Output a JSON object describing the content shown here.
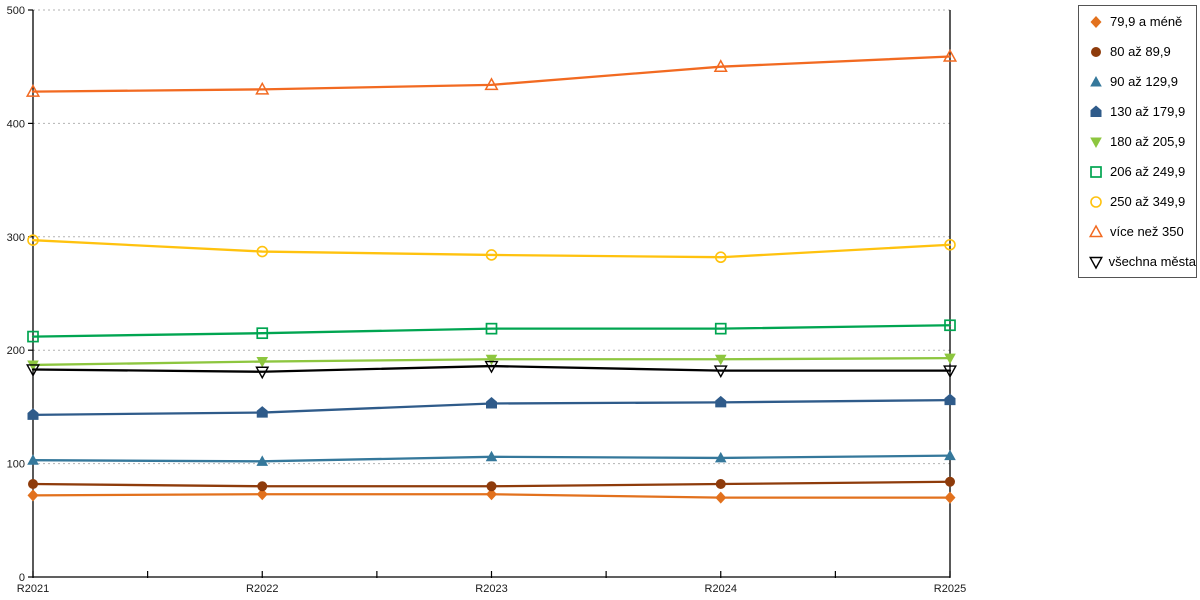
{
  "chart_data": {
    "type": "line",
    "title": "",
    "xlabel": "",
    "ylabel": "",
    "categories": [
      "R2021",
      "R2022",
      "R2023",
      "R2024",
      "R2025"
    ],
    "ylim": [
      0,
      500
    ],
    "yticks": [
      0,
      100,
      200,
      300,
      400,
      500
    ],
    "grid": "horizontal-dashed",
    "gridline_color": "#b3b3b3",
    "axis_color": "#000000",
    "legend_position": "top-right-outside",
    "series": [
      {
        "name": "79,9 a méně",
        "color": "#E2711D",
        "marker": "diamond",
        "fill": "filled",
        "values": [
          72,
          73,
          73,
          70,
          70
        ]
      },
      {
        "name": "80 až 89,9",
        "color": "#8E3B0B",
        "marker": "circle",
        "fill": "filled",
        "values": [
          82,
          80,
          80,
          82,
          84
        ]
      },
      {
        "name": "90 až 129,9",
        "color": "#35789B",
        "marker": "triangle-up",
        "fill": "filled",
        "values": [
          103,
          102,
          106,
          105,
          107
        ]
      },
      {
        "name": "130 až 179,9",
        "color": "#2F5B8A",
        "marker": "pentagon",
        "fill": "filled",
        "values": [
          143,
          145,
          153,
          154,
          156
        ]
      },
      {
        "name": "180 až 205,9",
        "color": "#8DC63F",
        "marker": "triangle-down",
        "fill": "filled",
        "values": [
          187,
          190,
          192,
          192,
          193
        ]
      },
      {
        "name": "206 až 249,9",
        "color": "#00A551",
        "marker": "square",
        "fill": "open",
        "values": [
          212,
          215,
          219,
          219,
          222
        ]
      },
      {
        "name": "250 až 349,9",
        "color": "#FFC20E",
        "marker": "circle",
        "fill": "open",
        "values": [
          297,
          287,
          284,
          282,
          293
        ]
      },
      {
        "name": "více než 350",
        "color": "#F26A21",
        "marker": "triangle-up",
        "fill": "open",
        "values": [
          428,
          430,
          434,
          450,
          459
        ]
      },
      {
        "name": "všechna města",
        "color": "#000000",
        "marker": "triangle-down",
        "fill": "open",
        "values": [
          183,
          181,
          186,
          182,
          182
        ]
      }
    ]
  }
}
